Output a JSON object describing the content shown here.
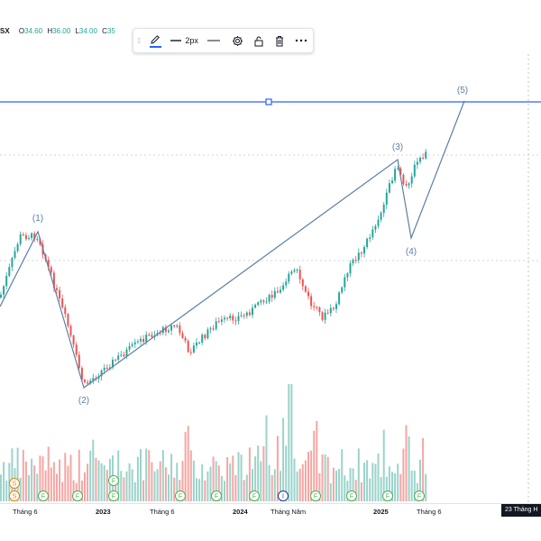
{
  "legend": {
    "symbol_fragment": "SX",
    "open_key": "O",
    "open_value": "34.60",
    "high_key": "H",
    "high_value": "36.00",
    "low_key": "L",
    "low_value": "34.00",
    "close_key": "C",
    "close_value": "35"
  },
  "toolbar": {
    "line_width_label": "2px",
    "icons": [
      "pencil-icon",
      "line-width-icon",
      "line-style-icon",
      "settings-icon",
      "lock-icon",
      "delete-icon",
      "more-icon"
    ]
  },
  "elliott_wave": {
    "labels": [
      "(1)",
      "(2)",
      "(3)",
      "(4)",
      "(5)"
    ]
  },
  "time_axis": {
    "ticks": [
      {
        "label": "Tháng 6",
        "bold": false
      },
      {
        "label": "2023",
        "bold": true
      },
      {
        "label": "Tháng 6",
        "bold": false
      },
      {
        "label": "2024",
        "bold": true
      },
      {
        "label": "Tháng Năm",
        "bold": false
      },
      {
        "label": "2025",
        "bold": true
      },
      {
        "label": "Tháng 6",
        "bold": false
      }
    ],
    "cursor_date": "23 Tháng H"
  },
  "event_markers": [
    "S",
    "S",
    "F",
    "F",
    "F",
    "F",
    "F",
    "F",
    "F",
    "I",
    "F",
    "F",
    "F",
    "F"
  ],
  "colors": {
    "up": "#26a69a",
    "down": "#ef5350",
    "drawing": "#5b7fa6",
    "hline": "#2962ff",
    "volume_up": "#9bd3cb",
    "volume_down": "#f5a6a4",
    "event_up": "#4caf50",
    "event_split": "#f57c00",
    "event_info": "#1e3a8a"
  }
}
